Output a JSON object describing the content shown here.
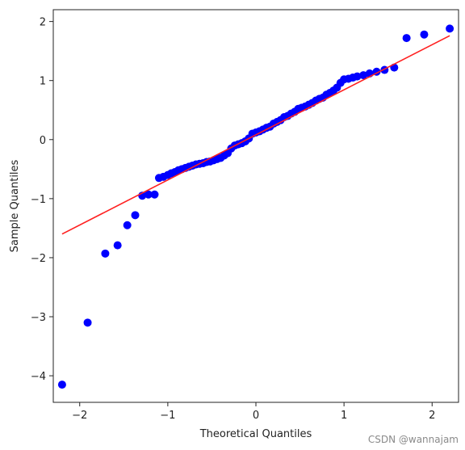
{
  "chart_data": {
    "type": "scatter",
    "title": "",
    "xlabel": "Theoretical Quantiles",
    "ylabel": "Sample Quantiles",
    "xlim": [
      -2.3,
      2.3
    ],
    "ylim": [
      -4.45,
      2.2
    ],
    "xticks": [
      -2,
      -1,
      0,
      1,
      2
    ],
    "yticks": [
      -4,
      -3,
      -2,
      -1,
      0,
      1,
      2
    ],
    "xtick_labels": [
      "−2",
      "−1",
      "0",
      "1",
      "2"
    ],
    "ytick_labels": [
      "−4",
      "−3",
      "−2",
      "−1",
      "0",
      "1",
      "2"
    ],
    "grid": false,
    "colors": {
      "points": "#0000ff",
      "line": "#ff2020",
      "axes": "#222222"
    },
    "series": [
      {
        "kind": "points",
        "x": [
          -2.2,
          -1.91,
          -1.71,
          -1.57,
          -1.46,
          -1.37,
          -1.29,
          -1.22,
          -1.15,
          -1.1,
          -1.05,
          -1.0,
          -0.96,
          -0.92,
          -0.88,
          -0.84,
          -0.8,
          -0.76,
          -0.72,
          -0.68,
          -0.64,
          -0.6,
          -0.56,
          -0.52,
          -0.48,
          -0.44,
          -0.4,
          -0.36,
          -0.32,
          -0.28,
          -0.24,
          -0.2,
          -0.16,
          -0.12,
          -0.08,
          -0.04,
          0.0,
          0.04,
          0.08,
          0.12,
          0.16,
          0.2,
          0.24,
          0.28,
          0.32,
          0.36,
          0.4,
          0.44,
          0.48,
          0.52,
          0.56,
          0.6,
          0.64,
          0.68,
          0.72,
          0.76,
          0.8,
          0.84,
          0.88,
          0.92,
          0.96,
          1.0,
          1.05,
          1.1,
          1.15,
          1.22,
          1.29,
          1.37,
          1.46,
          1.57,
          1.71,
          1.91,
          2.2
        ],
        "y": [
          -4.15,
          -3.1,
          -1.93,
          -1.79,
          -1.45,
          -1.28,
          -0.95,
          -0.93,
          -0.93,
          -0.65,
          -0.63,
          -0.6,
          -0.57,
          -0.55,
          -0.52,
          -0.5,
          -0.48,
          -0.46,
          -0.44,
          -0.42,
          -0.41,
          -0.4,
          -0.38,
          -0.37,
          -0.35,
          -0.33,
          -0.31,
          -0.27,
          -0.23,
          -0.15,
          -0.1,
          -0.08,
          -0.06,
          -0.03,
          0.02,
          0.1,
          0.12,
          0.14,
          0.17,
          0.2,
          0.22,
          0.27,
          0.3,
          0.33,
          0.38,
          0.4,
          0.44,
          0.47,
          0.52,
          0.54,
          0.56,
          0.59,
          0.62,
          0.66,
          0.69,
          0.71,
          0.76,
          0.79,
          0.83,
          0.88,
          0.96,
          1.02,
          1.03,
          1.05,
          1.07,
          1.09,
          1.12,
          1.15,
          1.18,
          1.22,
          1.72,
          1.78,
          1.88
        ]
      },
      {
        "kind": "line",
        "x": [
          -2.2,
          2.2
        ],
        "y": [
          -1.6,
          1.76
        ]
      }
    ]
  },
  "watermark": "CSDN @wannajam"
}
